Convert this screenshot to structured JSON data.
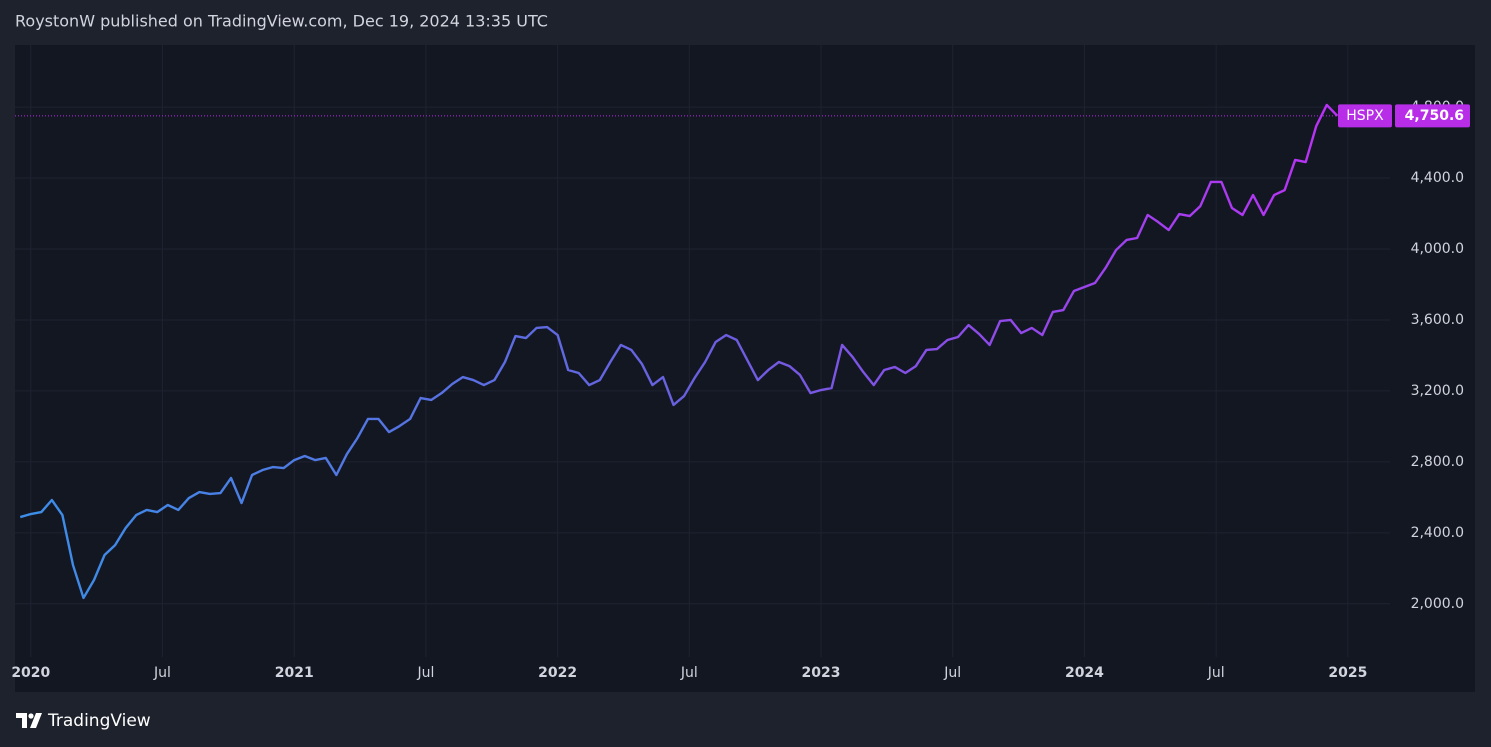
{
  "header": "RoystonW published on TradingView.com, Dec 19, 2024 13:35 UTC",
  "footer": "TradingView",
  "chart_data": {
    "type": "line",
    "x": [
      2019.96,
      2020,
      2020.04,
      2020.08,
      2020.12,
      2020.16,
      2020.2,
      2020.24,
      2020.28,
      2020.32,
      2020.36,
      2020.4,
      2020.44,
      2020.48,
      2020.52,
      2020.56,
      2020.6,
      2020.64,
      2020.68,
      2020.72,
      2020.76,
      2020.8,
      2020.84,
      2020.88,
      2020.92,
      2020.96,
      2021,
      2021.04,
      2021.08,
      2021.12,
      2021.16,
      2021.2,
      2021.24,
      2021.28,
      2021.32,
      2021.36,
      2021.4,
      2021.44,
      2021.48,
      2021.52,
      2021.56,
      2021.6,
      2021.64,
      2021.68,
      2021.72,
      2021.76,
      2021.8,
      2021.84,
      2021.88,
      2021.92,
      2021.96,
      2022,
      2022.04,
      2022.08,
      2022.12,
      2022.16,
      2022.2,
      2022.24,
      2022.28,
      2022.32,
      2022.36,
      2022.4,
      2022.44,
      2022.48,
      2022.52,
      2022.56,
      2022.6,
      2022.64,
      2022.68,
      2022.72,
      2022.76,
      2022.8,
      2022.84,
      2022.88,
      2022.92,
      2022.96,
      2023,
      2023.04,
      2023.08,
      2023.12,
      2023.16,
      2023.2,
      2023.24,
      2023.28,
      2023.32,
      2023.36,
      2023.4,
      2023.44,
      2023.48,
      2023.52,
      2023.56,
      2023.6,
      2023.64,
      2023.68,
      2023.72,
      2023.76,
      2023.8,
      2023.84,
      2023.88,
      2023.92,
      2023.96,
      2024,
      2024.04,
      2024.08,
      2024.12,
      2024.16,
      2024.2,
      2024.24,
      2024.28,
      2024.32,
      2024.36,
      2024.4,
      2024.44,
      2024.48,
      2024.52,
      2024.56,
      2024.6,
      2024.64,
      2024.68,
      2024.72,
      2024.76,
      2024.8,
      2024.84,
      2024.88,
      2024.92,
      2024.96
    ],
    "series": [
      {
        "name": "HSPX",
        "colors": [
          "#3b8fe8",
          "#6a5fdf",
          "#c12ef7"
        ],
        "last_color": "#b82ee8",
        "values": [
          2489,
          2506,
          2517,
          2585,
          2500,
          2219,
          2033,
          2134,
          2275,
          2331,
          2427,
          2500,
          2529,
          2517,
          2557,
          2529,
          2596,
          2630,
          2619,
          2624,
          2709,
          2568,
          2726,
          2754,
          2771,
          2765,
          2810,
          2833,
          2810,
          2822,
          2726,
          2844,
          2934,
          3042,
          3042,
          2968,
          3002,
          3042,
          3160,
          3149,
          3188,
          3239,
          3278,
          3261,
          3233,
          3261,
          3363,
          3509,
          3498,
          3555,
          3560,
          3515,
          3318,
          3301,
          3233,
          3261,
          3363,
          3459,
          3431,
          3352,
          3233,
          3278,
          3121,
          3171,
          3273,
          3363,
          3476,
          3515,
          3487,
          3374,
          3261,
          3318,
          3363,
          3340,
          3290,
          3188,
          3205,
          3216,
          3459,
          3391,
          3307,
          3233,
          3318,
          3335,
          3301,
          3340,
          3431,
          3436,
          3487,
          3504,
          3571,
          3521,
          3459,
          3594,
          3600,
          3526,
          3555,
          3515,
          3645,
          3656,
          3763,
          3786,
          3808,
          3893,
          3994,
          4051,
          4062,
          4192,
          4152,
          4107,
          4197,
          4186,
          4242,
          4378,
          4378,
          4231,
          4192,
          4304,
          4192,
          4304,
          4332,
          4502,
          4490,
          4693,
          4812,
          4750.6
        ],
        "last_value_label": "4,750.6"
      }
    ],
    "xlim": [
      2019.94,
      2025.16
    ],
    "xticks": [
      2020,
      {
        "value": 2020.5,
        "label": "Jul"
      },
      2021,
      {
        "value": 2021.5,
        "label": "Jul"
      },
      2022,
      {
        "value": 2022.5,
        "label": "Jul"
      },
      2023,
      {
        "value": 2023.5,
        "label": "Jul"
      },
      2024,
      {
        "value": 2024.5,
        "label": "Jul"
      },
      2025
    ],
    "ylim": [
      1700,
      5150
    ],
    "yticks": [
      {
        "value": 2000,
        "label": "2,000.0"
      },
      {
        "value": 2400,
        "label": "2,400.0"
      },
      {
        "value": 2800,
        "label": "2,800.0"
      },
      {
        "value": 3200,
        "label": "3,200.0"
      },
      {
        "value": 3600,
        "label": "3,600.0"
      },
      {
        "value": 4000,
        "label": "4,000.0"
      },
      {
        "value": 4400,
        "label": "4,400.0"
      },
      {
        "value": 4800,
        "label": "4,800.0"
      }
    ],
    "grid": true
  }
}
